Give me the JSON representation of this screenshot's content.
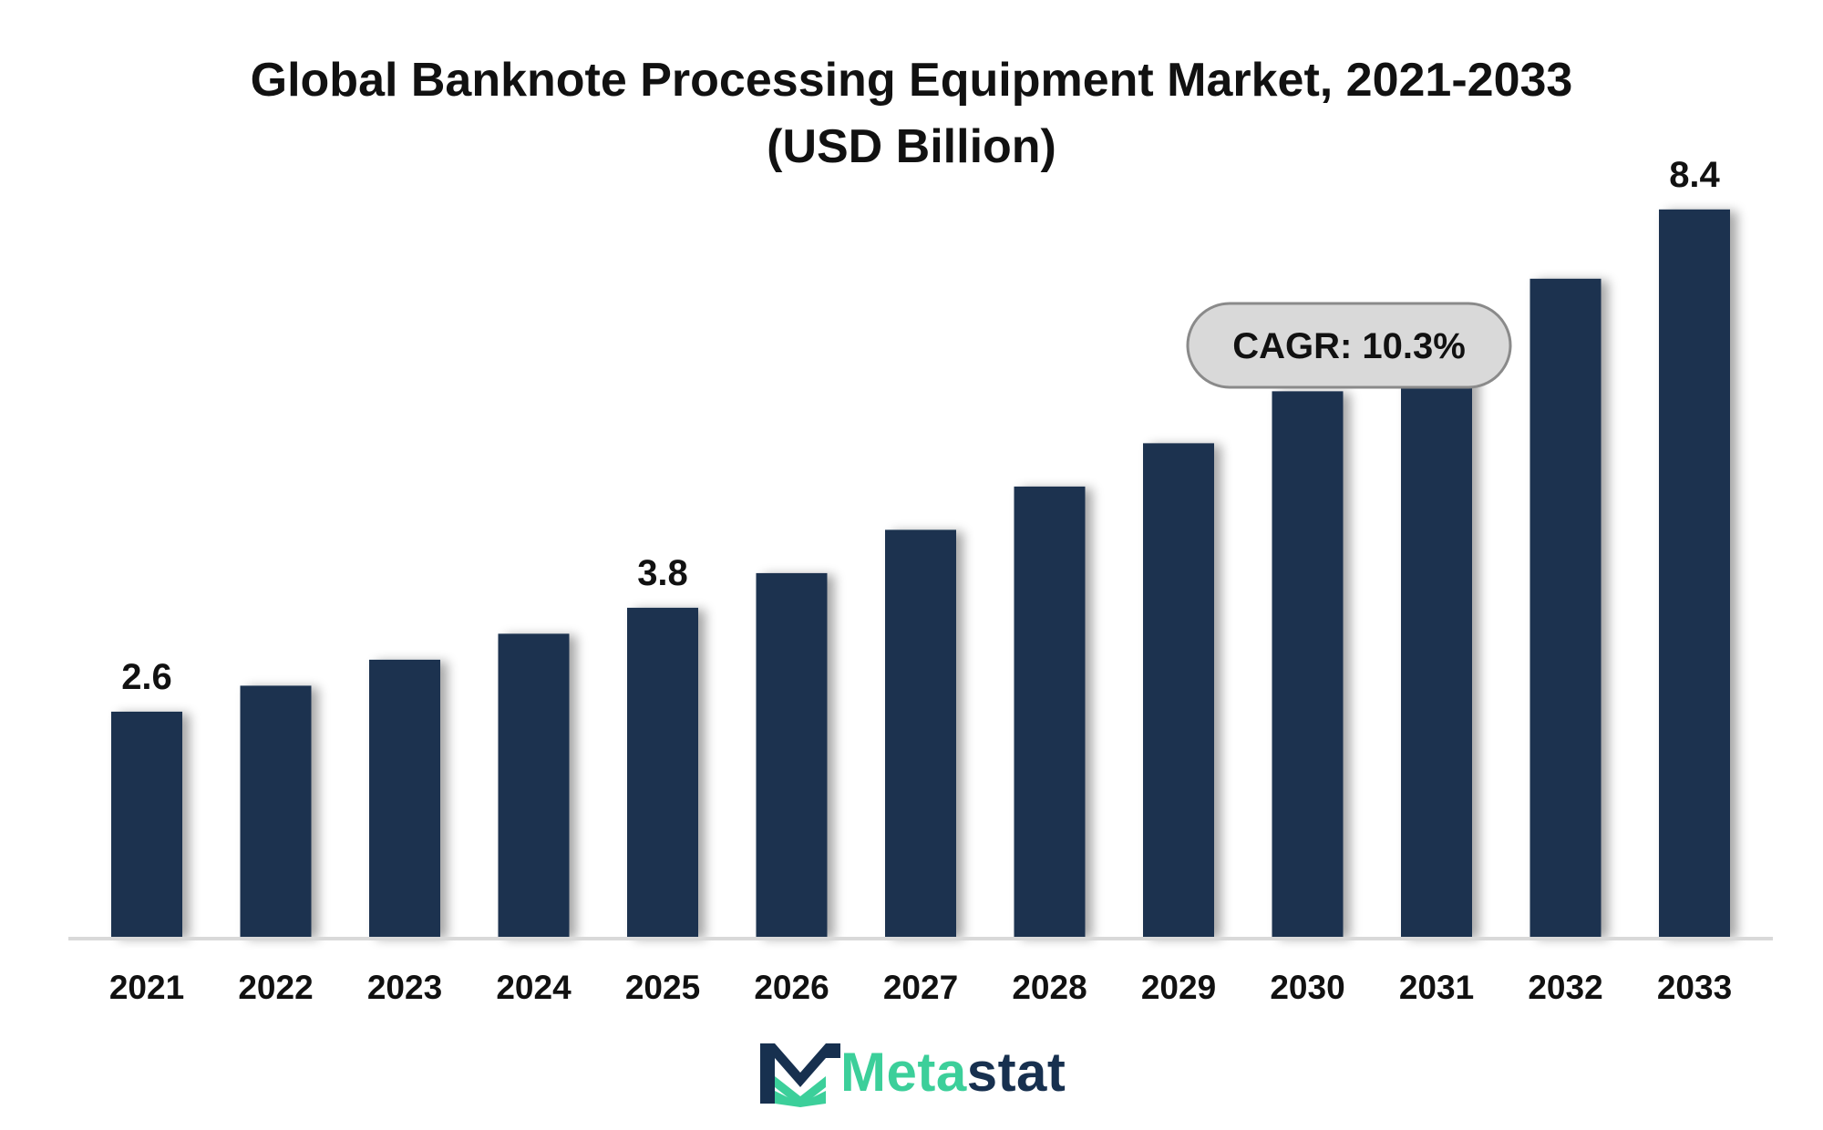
{
  "chart_data": {
    "type": "bar",
    "title": "Global Banknote Processing Equipment Market, 2021-2033",
    "subtitle": "(USD Billion)",
    "categories": [
      "2021",
      "2022",
      "2023",
      "2024",
      "2025",
      "2026",
      "2027",
      "2028",
      "2029",
      "2030",
      "2031",
      "2032",
      "2033"
    ],
    "values": [
      2.6,
      2.9,
      3.2,
      3.5,
      3.8,
      4.2,
      4.7,
      5.2,
      5.7,
      6.3,
      6.9,
      7.6,
      8.4
    ],
    "data_labels": {
      "0": "2.6",
      "4": "3.8",
      "12": "8.4"
    },
    "ylim": [
      0,
      9.24
    ],
    "grid": false,
    "bar_color": "#1b3350",
    "annotation": "CAGR: 10.3%"
  },
  "branding": {
    "logo_prefix": "Meta",
    "logo_suffix": "stat",
    "prefix_color": "#3ccf9a",
    "suffix_color": "#17304f",
    "logo_icon": "metastat-m-logo-icon"
  }
}
